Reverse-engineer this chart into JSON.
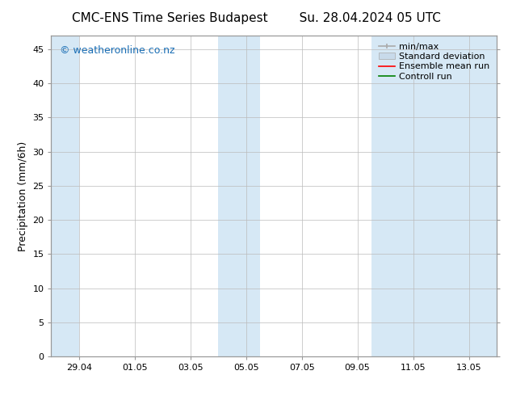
{
  "title_left": "CMC-ENS Time Series Budapest",
  "title_right": "Su. 28.04.2024 05 UTC",
  "ylabel": "Precipitation (mm/6h)",
  "ylim": [
    0,
    47
  ],
  "yticks": [
    0,
    5,
    10,
    15,
    20,
    25,
    30,
    35,
    40,
    45
  ],
  "xtick_labels": [
    "29.04",
    "01.05",
    "03.05",
    "05.05",
    "07.05",
    "09.05",
    "11.05",
    "13.05"
  ],
  "xtick_positions": [
    1,
    3,
    5,
    7,
    9,
    11,
    13,
    15
  ],
  "xlim": [
    0,
    16
  ],
  "shaded_regions": [
    {
      "start": 0,
      "end": 1.0,
      "color": "#d6e8f5"
    },
    {
      "start": 6.0,
      "end": 7.5,
      "color": "#d6e8f5"
    },
    {
      "start": 11.5,
      "end": 16.0,
      "color": "#d6e8f5"
    }
  ],
  "bg_color": "#ffffff",
  "spine_color": "#999999",
  "grid_color": "#bbbbbb",
  "watermark_text": "© weatheronline.co.nz",
  "watermark_color": "#1a6eb5",
  "legend_items": [
    {
      "label": "min/max",
      "color": "#aaaaaa"
    },
    {
      "label": "Standard deviation",
      "color": "#c8daea"
    },
    {
      "label": "Ensemble mean run",
      "color": "#ff0000"
    },
    {
      "label": "Controll run",
      "color": "#008000"
    }
  ],
  "title_fontsize": 11,
  "ylabel_fontsize": 9,
  "tick_fontsize": 8,
  "legend_fontsize": 8,
  "watermark_fontsize": 9
}
